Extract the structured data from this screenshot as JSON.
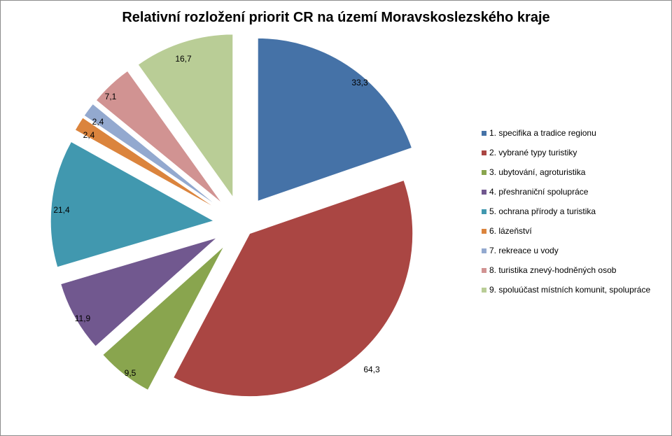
{
  "chart_data": {
    "type": "pie",
    "title": "Relativní rozložení priorit CR na území Moravskoslezského kraje",
    "labels": [
      "1. specifika a tradice regionu",
      "2. vybrané typy turistiky",
      "3. ubytování, agroturistika",
      "4. přeshraniční spolupráce",
      "5. ochrana přírody a turistika",
      "6. lázeňství",
      "7. rekreace u vody",
      "8. turistika znevý-hodněných osob",
      "9. spoluúčast místních komunit, spolupráce"
    ],
    "values": [
      33.3,
      64.3,
      9.5,
      11.9,
      21.4,
      2.4,
      2.4,
      7.1,
      16.7
    ],
    "value_labels": [
      "33,3",
      "64,3",
      "9,5",
      "11,9",
      "21,4",
      "2,4",
      "2,4",
      "7,1",
      "16,7"
    ],
    "colors": [
      "#4572a7",
      "#aa4643",
      "#89a54e",
      "#71588f",
      "#4198af",
      "#db843d",
      "#93a9cf",
      "#d19392",
      "#b9cd96"
    ],
    "exploded": true,
    "legend_position": "right"
  }
}
